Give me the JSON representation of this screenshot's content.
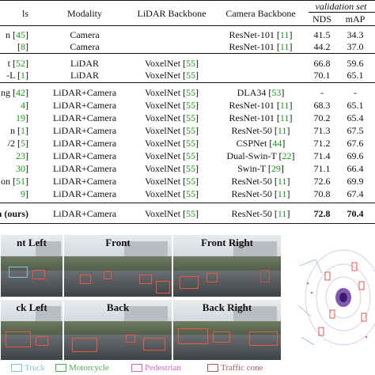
{
  "header": {
    "group_label": "validation set",
    "col_method": "ls",
    "col_modality": "Modality",
    "col_lidar": "LiDAR Backbone",
    "col_camera": "Camera Backbone",
    "col_nds": "NDS",
    "col_map": "mAP"
  },
  "rows": [
    {
      "m": "n [",
      "mc": "45",
      "me": "]",
      "mod": "Camera",
      "lb": "",
      "lbc": "",
      "cb": "ResNet-101 [",
      "cbc": "11",
      "nds": "41.5",
      "map": "34.3"
    },
    {
      "m": "[",
      "mc": "8",
      "me": "]",
      "mod": "Camera",
      "lb": "",
      "lbc": "",
      "cb": "ResNet-101 [",
      "cbc": "11",
      "nds": "44.2",
      "map": "37.0"
    },
    {
      "m": "t [",
      "mc": "52",
      "me": "]",
      "mod": "LiDAR",
      "lb": "VoxelNet [",
      "lbc": "55",
      "cb": "",
      "cbc": "",
      "nds": "66.8",
      "map": "59.6"
    },
    {
      "m": "-L [",
      "mc": "1",
      "me": "]",
      "mod": "LiDAR",
      "lb": "VoxelNet [",
      "lbc": "55",
      "cb": "",
      "cbc": "",
      "nds": "70.1",
      "map": "65.1"
    },
    {
      "m": "ng [",
      "mc": "42",
      "me": "]",
      "mod": "LiDAR+Camera",
      "lb": "VoxelNet [",
      "lbc": "55",
      "cb": "DLA34 [",
      "cbc": "53",
      "nds": "-",
      "map": "-"
    },
    {
      "m": "",
      "mc": "4",
      "me": "]",
      "mod": "LiDAR+Camera",
      "lb": "VoxelNet [",
      "lbc": "55",
      "cb": "ResNet-101 [",
      "cbc": "11",
      "nds": "68.3",
      "map": "65.1"
    },
    {
      "m": "",
      "mc": "19",
      "me": "]",
      "mod": "LiDAR+Camera",
      "lb": "VoxelNet [",
      "lbc": "55",
      "cb": "ResNet-101 [",
      "cbc": "11",
      "nds": "70.2",
      "map": "65.4"
    },
    {
      "m": "n [",
      "mc": "1",
      "me": "]",
      "mod": "LiDAR+Camera",
      "lb": "VoxelNet [",
      "lbc": "55",
      "cb": "ResNet-50 [",
      "cbc": "11",
      "nds": "71.3",
      "map": "67.5"
    },
    {
      "m": "/2 [",
      "mc": "5",
      "me": "]",
      "mod": "LiDAR+Camera",
      "lb": "VoxelNet [",
      "lbc": "55",
      "cb": "CSPNet [",
      "cbc": "44",
      "nds": "71.2",
      "map": "67.6"
    },
    {
      "m": "",
      "mc": "23",
      "me": "]",
      "mod": "LiDAR+Camera",
      "lb": "VoxelNet [",
      "lbc": "55",
      "cb": "Dual-Swin-T [",
      "cbc": "22",
      "nds": "71.4",
      "map": "69.6"
    },
    {
      "m": "",
      "mc": "30",
      "me": "]",
      "mod": "LiDAR+Camera",
      "lb": "VoxelNet [",
      "lbc": "55",
      "cb": "Swin-T [",
      "cbc": "29",
      "nds": "71.1",
      "map": "66.4"
    },
    {
      "m": "on [",
      "mc": "51",
      "me": "]",
      "mod": "LiDAR+Camera",
      "lb": "VoxelNet [",
      "lbc": "55",
      "cb": "ResNet-50 [",
      "cbc": "11",
      "nds": "72.6",
      "map": "69.9"
    },
    {
      "m": "",
      "mc": "9",
      "me": "]",
      "mod": "LiDAR+Camera",
      "lb": "VoxelNet [",
      "lbc": "55",
      "cb": "ResNet-50 [",
      "cbc": "11",
      "nds": "70.8",
      "map": "67.4"
    }
  ],
  "ours": {
    "m": "n (ours)",
    "mod": "LiDAR+Camera",
    "lb": "VoxelNet [",
    "lbc": "55",
    "cb": "ResNet-50 [",
    "cbc": "11",
    "nds": "72.8",
    "map": "70.4"
  },
  "cams": [
    {
      "title": "nt Left"
    },
    {
      "title": "Front"
    },
    {
      "title": "Front Right"
    },
    {
      "title": "ck Left"
    },
    {
      "title": "Back"
    },
    {
      "title": "Back Right"
    }
  ],
  "legend": [
    {
      "label": "Truck",
      "color": "#7fc4e6"
    },
    {
      "label": "Motorcycle",
      "color": "#4caf50"
    },
    {
      "label": "Pedestrian",
      "color": "#d166c8"
    },
    {
      "label": "Traffic cone",
      "color": "#b35a5a"
    }
  ],
  "colors": {
    "cite": "#1a9a1a",
    "car_box": "#e8574a",
    "bev_points": "#6a3ea6"
  }
}
